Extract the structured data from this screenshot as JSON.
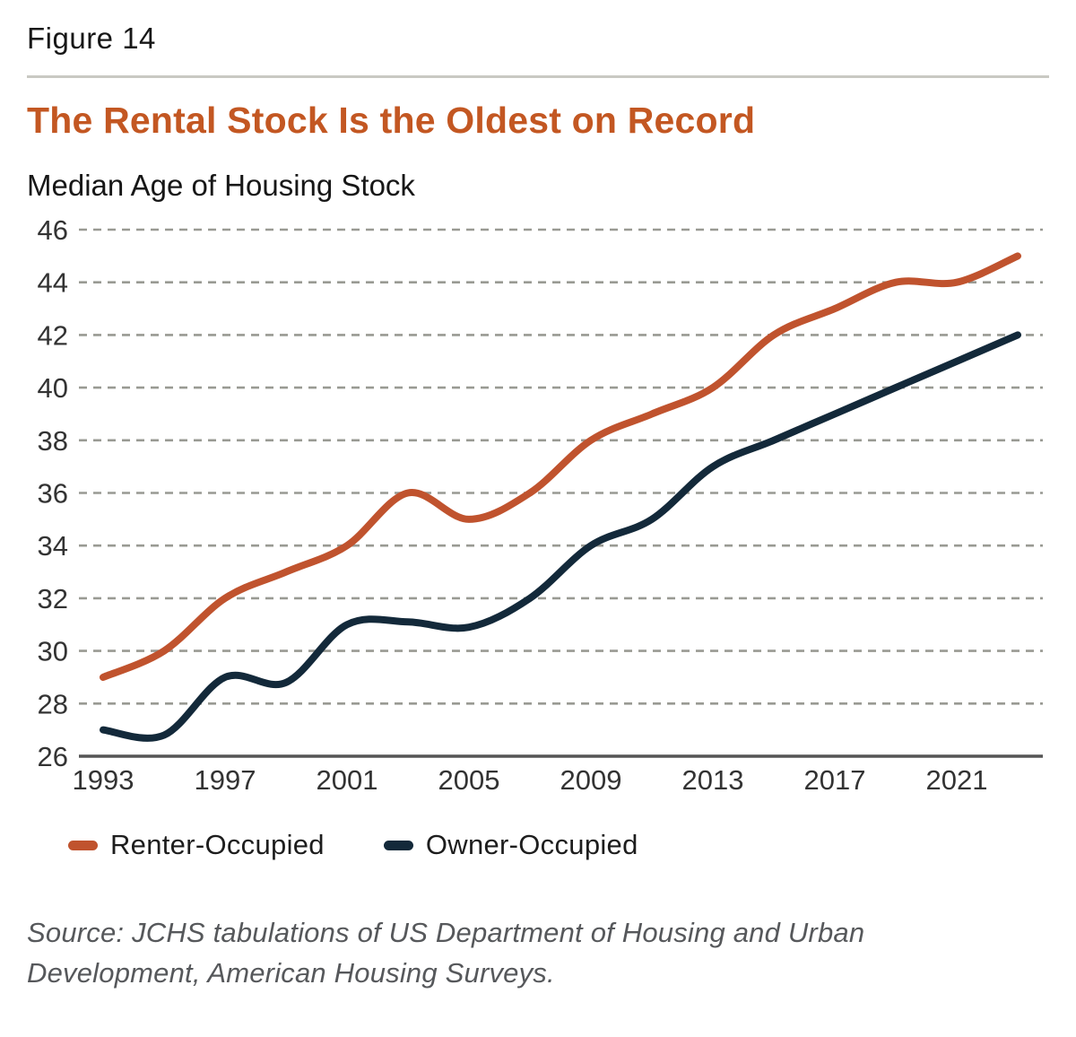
{
  "figure_label": "Figure 14",
  "title": "The Rental Stock Is the Oldest on Record",
  "subtitle": "Median Age of Housing Stock",
  "source": "Source: JCHS tabulations of US Department of Housing and Urban Development, American Housing Surveys.",
  "colors": {
    "accent_orange": "#c35722",
    "renter_line": "#c0532e",
    "owner_line": "#13293a",
    "grid": "#999a93",
    "axis": "#555555",
    "tick_label": "#333333",
    "divider": "#c9c9c3",
    "source_text": "#56585b"
  },
  "legend": {
    "items": [
      {
        "label": "Renter-Occupied",
        "color": "#c0532e"
      },
      {
        "label": "Owner-Occupied",
        "color": "#13293a"
      }
    ]
  },
  "chart_data": {
    "type": "line",
    "x": [
      1993,
      1995,
      1997,
      1999,
      2001,
      2003,
      2005,
      2007,
      2009,
      2011,
      2013,
      2015,
      2017,
      2019,
      2021,
      2023
    ],
    "series": [
      {
        "name": "Renter-Occupied",
        "color": "#c0532e",
        "values": [
          29,
          30,
          32,
          33,
          34,
          36,
          35,
          36,
          38,
          39,
          40,
          42,
          43,
          44,
          44,
          45
        ]
      },
      {
        "name": "Owner-Occupied",
        "color": "#13293a",
        "values": [
          27,
          26.8,
          29,
          28.8,
          31,
          31.1,
          30.9,
          32,
          34,
          35,
          37,
          38,
          39,
          40,
          41,
          42
        ]
      }
    ],
    "title": "The Rental Stock Is the Oldest on Record",
    "subtitle": "Median Age of Housing Stock",
    "xlabel": "",
    "ylabel": "",
    "ylim": [
      26,
      46
    ],
    "ytick_step": 2,
    "xticks": [
      1993,
      1997,
      2001,
      2005,
      2009,
      2013,
      2017,
      2021
    ],
    "grid": "horizontal-dashed",
    "legend_position": "bottom"
  }
}
